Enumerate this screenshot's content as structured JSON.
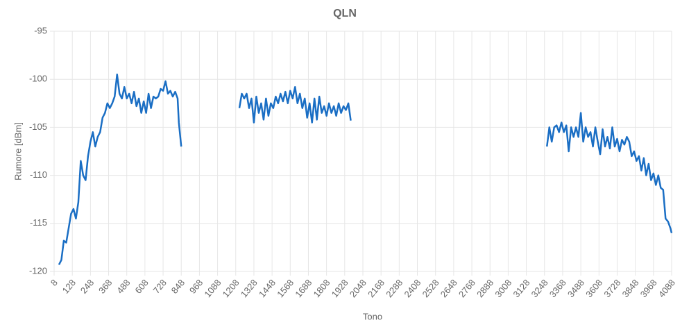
{
  "chart_data": {
    "type": "line",
    "title": "QLN",
    "xlabel": "Tono",
    "ylabel": "Rumore [dBm]",
    "x": [
      40,
      56,
      72,
      88,
      104,
      120,
      136,
      152,
      168,
      184,
      200,
      216,
      232,
      248,
      264,
      280,
      296,
      312,
      328,
      344,
      360,
      376,
      392,
      408,
      424,
      440,
      456,
      472,
      488,
      504,
      520,
      536,
      552,
      568,
      584,
      600,
      616,
      632,
      648,
      664,
      680,
      696,
      712,
      728,
      744,
      760,
      776,
      792,
      808,
      824,
      832,
      848,
      1040,
      1232,
      1248,
      1264,
      1280,
      1296,
      1312,
      1328,
      1344,
      1360,
      1376,
      1392,
      1408,
      1424,
      1440,
      1456,
      1472,
      1488,
      1504,
      1520,
      1536,
      1552,
      1568,
      1584,
      1600,
      1616,
      1632,
      1648,
      1664,
      1680,
      1696,
      1712,
      1728,
      1744,
      1760,
      1776,
      1792,
      1808,
      1824,
      1840,
      1856,
      1872,
      1888,
      1904,
      1920,
      1936,
      1952,
      1968,
      2600,
      3264,
      3280,
      3296,
      3312,
      3328,
      3344,
      3360,
      3376,
      3392,
      3408,
      3424,
      3440,
      3456,
      3472,
      3488,
      3504,
      3520,
      3536,
      3552,
      3568,
      3584,
      3600,
      3616,
      3632,
      3648,
      3664,
      3680,
      3696,
      3712,
      3728,
      3744,
      3760,
      3776,
      3792,
      3808,
      3824,
      3840,
      3856,
      3872,
      3888,
      3904,
      3920,
      3936,
      3952,
      3968,
      3984,
      4000,
      4016,
      4032,
      4048,
      4064,
      4080,
      4088
    ],
    "series": [
      {
        "name": "QLN",
        "color": "#1a6ec4",
        "values": [
          -119.3,
          -118.8,
          -116.8,
          -117,
          -115.5,
          -114,
          -113.5,
          -114.5,
          -112.8,
          -108.5,
          -110,
          -110.5,
          -108,
          -106.5,
          -105.5,
          -107,
          -106,
          -105.5,
          -104,
          -103.5,
          -102.5,
          -103,
          -102.5,
          -101.8,
          -99.5,
          -101.5,
          -102,
          -100.8,
          -102,
          -101.5,
          -102.5,
          -101.3,
          -102.8,
          -102,
          -103.5,
          -102.3,
          -103.5,
          -101.5,
          -103,
          -101.8,
          -102,
          -101.8,
          -101,
          -101.2,
          -100.2,
          -101.5,
          -101.2,
          -101.8,
          -101.3,
          -102,
          -104.5,
          -107,
          null,
          -103,
          -101.5,
          -102,
          -101.5,
          -103,
          -102,
          -104.5,
          -101.8,
          -103.5,
          -102.5,
          -104.2,
          -102,
          -103.8,
          -102.5,
          -103,
          -101.8,
          -102.5,
          -101.5,
          -102.3,
          -101.3,
          -102.5,
          -101.2,
          -102,
          -100.8,
          -102.5,
          -101.5,
          -103,
          -102,
          -104,
          -102.5,
          -104.5,
          -102,
          -104.2,
          -101.8,
          -103.5,
          -102.8,
          -103.8,
          -102.5,
          -103.5,
          -102.8,
          -103.8,
          -102.5,
          -103.5,
          -102.8,
          -103.2,
          -102.5,
          -104.3,
          null,
          -107,
          -105,
          -106.5,
          -105,
          -104.8,
          -105.5,
          -104.5,
          -105.5,
          -104.8,
          -107.5,
          -105,
          -106,
          -105,
          -106,
          -103.5,
          -106.5,
          -105,
          -106,
          -105.5,
          -107,
          -105,
          -106.5,
          -107.8,
          -105.2,
          -107,
          -106,
          -107.2,
          -105,
          -107,
          -106.2,
          -107.5,
          -106.3,
          -106.8,
          -106,
          -106.5,
          -108,
          -107.5,
          -108.5,
          -108,
          -109.5,
          -108.2,
          -110,
          -108.8,
          -110.5,
          -109.8,
          -111,
          -110,
          -111.3,
          -111.5,
          -114.5,
          -114.8,
          -115.5,
          -116
        ]
      }
    ],
    "xlim": [
      8,
      4088
    ],
    "xticks": [
      8,
      128,
      248,
      368,
      488,
      608,
      728,
      848,
      968,
      1088,
      1208,
      1328,
      1448,
      1568,
      1688,
      1808,
      1928,
      2048,
      2168,
      2288,
      2408,
      2528,
      2648,
      2768,
      2888,
      3008,
      3128,
      3248,
      3368,
      3488,
      3608,
      3728,
      3848,
      3968,
      4088
    ],
    "ylim": [
      -120,
      -95
    ],
    "yticks": [
      -120,
      -115,
      -110,
      -105,
      -100,
      -95
    ],
    "grid": true
  }
}
